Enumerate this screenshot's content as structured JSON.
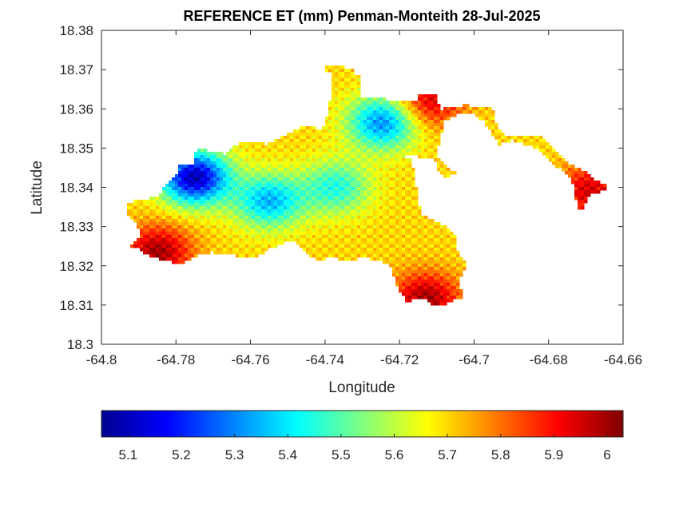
{
  "chart_data": {
    "type": "heatmap",
    "title": "REFERENCE ET (mm) Penman-Monteith 28-Jul-2025",
    "xlabel": "Longitude",
    "ylabel": "Latitude",
    "xlim": [
      -64.8,
      -64.66
    ],
    "ylim": [
      18.3,
      18.38
    ],
    "xticks": [
      -64.8,
      -64.78,
      -64.76,
      -64.74,
      -64.72,
      -64.7,
      -64.68,
      -64.66
    ],
    "xtick_labels": [
      "-64.8",
      "-64.78",
      "-64.76",
      "-64.74",
      "-64.72",
      "-64.7",
      "-64.68",
      "-64.66"
    ],
    "yticks": [
      18.3,
      18.31,
      18.32,
      18.33,
      18.34,
      18.35,
      18.36,
      18.37,
      18.38
    ],
    "ytick_labels": [
      "18.3",
      "18.31",
      "18.32",
      "18.33",
      "18.34",
      "18.35",
      "18.36",
      "18.37",
      "18.38"
    ],
    "grid": false,
    "colormap": "jet",
    "colorbar": {
      "orientation": "horizontal",
      "location": "below",
      "range": [
        5.05,
        6.03
      ],
      "ticks": [
        5.1,
        5.2,
        5.3,
        5.4,
        5.5,
        5.6,
        5.7,
        5.8,
        5.9,
        6
      ],
      "tick_labels": [
        "5.1",
        "5.2",
        "5.3",
        "5.4",
        "5.5",
        "5.6",
        "5.7",
        "5.8",
        "5.9",
        "6"
      ]
    },
    "field": {
      "base_value": 5.7,
      "low_centers": [
        {
          "lon": -64.775,
          "lat": 18.3425,
          "value": 5.1
        },
        {
          "lon": -64.7245,
          "lat": 18.3565,
          "value": 5.3
        },
        {
          "lon": -64.755,
          "lat": 18.3365,
          "value": 5.35
        },
        {
          "lon": -64.737,
          "lat": 18.34,
          "value": 5.45
        }
      ],
      "high_centers": [
        {
          "lon": -64.785,
          "lat": 18.3235,
          "value": 6.0
        },
        {
          "lon": -64.713,
          "lat": 18.3115,
          "value": 6.0
        },
        {
          "lon": -64.712,
          "lat": 18.362,
          "value": 5.95
        },
        {
          "lon": -64.669,
          "lat": 18.339,
          "value": 5.95
        }
      ]
    }
  }
}
